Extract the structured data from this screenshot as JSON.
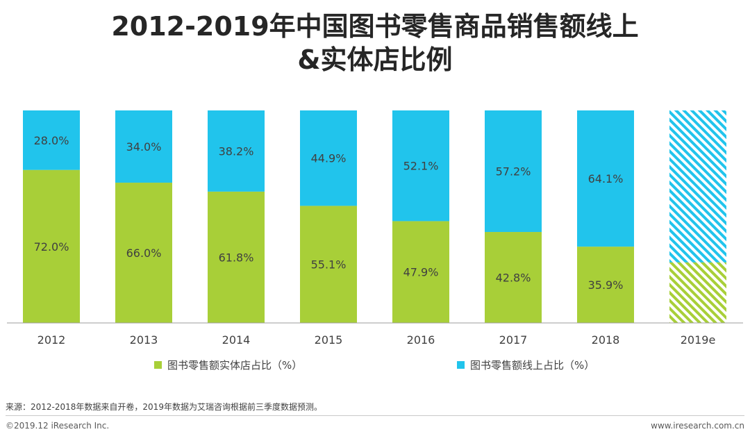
{
  "title": {
    "line1": "2012-2019年中国图书零售商品销售额线上",
    "line2": "&实体店比例"
  },
  "colors": {
    "offline": "#a8cf38",
    "online": "#21c4ec",
    "axis": "#9e9e9e"
  },
  "chart_data": {
    "type": "bar",
    "stacked": true,
    "percent": true,
    "title": "2012-2019年中国图书零售商品销售额线上&实体店比例",
    "categories": [
      "2012",
      "2013",
      "2014",
      "2015",
      "2016",
      "2017",
      "2018",
      "2019e"
    ],
    "series": [
      {
        "name": "图书零售额实体店占比（%）",
        "values": [
          72.0,
          66.0,
          61.8,
          55.1,
          47.9,
          42.8,
          35.9,
          28.5
        ],
        "labels": [
          "72.0%",
          "66.0%",
          "61.8%",
          "55.1%",
          "47.9%",
          "42.8%",
          "35.9%",
          ""
        ]
      },
      {
        "name": "图书零售额线上占比（%）",
        "values": [
          28.0,
          34.0,
          38.2,
          44.9,
          52.1,
          57.2,
          64.1,
          71.5
        ],
        "labels": [
          "28.0%",
          "34.0%",
          "38.2%",
          "44.9%",
          "52.1%",
          "57.2%",
          "64.1%",
          ""
        ]
      }
    ],
    "estimated_categories": [
      "2019e"
    ],
    "ylim": [
      0,
      100
    ],
    "xlabel": "",
    "ylabel": "",
    "legend_position": "bottom",
    "grid": false
  },
  "source": "来源：2012-2018年数据来自开卷，2019年数据为艾瑞咨询根据前三季度数据预测。",
  "footer": {
    "copyright": "©2019.12 iResearch Inc.",
    "website": "www.iresearch.com.cn"
  }
}
